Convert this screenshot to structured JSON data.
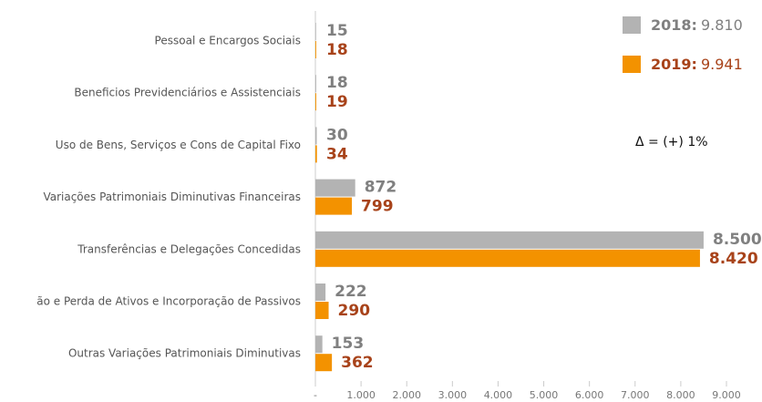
{
  "chart_data": {
    "type": "bar",
    "orientation": "horizontal",
    "categories": [
      "Pessoal e Encargos Sociais",
      "Beneficios Previdenciários e Assistenciais",
      "Uso de Bens, Serviços e Cons de Capital Fixo",
      "Variações Patrimoniais Diminutivas Financeiras",
      "Transferências e Delegações Concedidas",
      "ão e Perda de Ativos e Incorporação de Passivos",
      "Outras Variações Patrimoniais Diminutivas"
    ],
    "series": [
      {
        "name": "2018:",
        "color": "#b3b3b3",
        "label_color": "#808080",
        "total": 9810,
        "total_label": "9.810",
        "values": [
          15,
          18,
          30,
          872,
          8500,
          222,
          153
        ],
        "value_labels": [
          "15",
          "18",
          "30",
          "872",
          "8.500",
          "222",
          "153"
        ]
      },
      {
        "name": "2019:",
        "color": "#f39200",
        "label_color": "#a8431a",
        "total": 9941,
        "total_label": "9.941",
        "values": [
          18,
          19,
          34,
          799,
          8420,
          290,
          362
        ],
        "value_labels": [
          "18",
          "19",
          "34",
          "799",
          "8.420",
          "290",
          "362"
        ]
      }
    ],
    "annotation": "Δ = (+) 1%",
    "xlim": [
      0,
      9000
    ],
    "xticks": [
      {
        "value": 0,
        "label": "-"
      },
      {
        "value": 1000,
        "label": "1.000"
      },
      {
        "value": 2000,
        "label": "2.000"
      },
      {
        "value": 3000,
        "label": "3.000"
      },
      {
        "value": 4000,
        "label": "4.000"
      },
      {
        "value": 5000,
        "label": "5.000"
      },
      {
        "value": 6000,
        "label": "6.000"
      },
      {
        "value": 7000,
        "label": "7.000"
      },
      {
        "value": 8000,
        "label": "8.000"
      },
      {
        "value": 9000,
        "label": "9.000"
      }
    ],
    "legend": "top-right"
  }
}
